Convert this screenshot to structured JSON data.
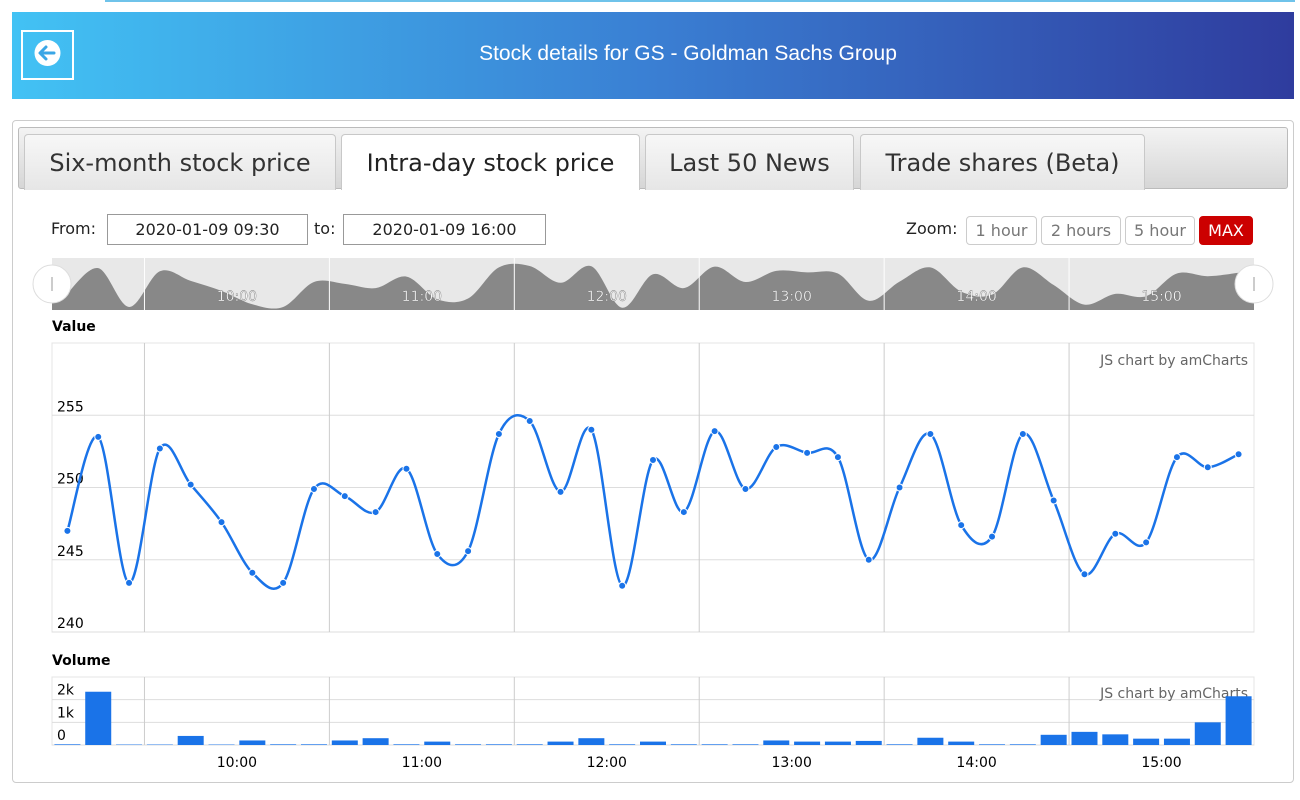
{
  "header": {
    "title": "Stock details for GS - Goldman Sachs Group"
  },
  "tabs": {
    "items": [
      "Six-month stock price",
      "Intra-day stock price",
      "Last 50 News",
      "Trade shares (Beta)"
    ],
    "active": 1
  },
  "controls": {
    "from_label": "From:",
    "from_value": "2020-01-09 09:30",
    "to_label": "to:",
    "to_value": "2020-01-09 16:00",
    "zoom_label": "Zoom:",
    "zoom_buttons": [
      "1 hour",
      "2 hours",
      "5 hour",
      "MAX"
    ],
    "zoom_active": 3
  },
  "chart_data": [
    {
      "type": "line",
      "title": "Value",
      "credit": "JS chart by amCharts",
      "color": "#1a73e8",
      "grid": true,
      "x": [
        "09:35",
        "09:45",
        "09:55",
        "10:05",
        "10:15",
        "10:25",
        "10:35",
        "10:45",
        "10:55",
        "11:05",
        "11:15",
        "11:25",
        "11:35",
        "11:45",
        "11:55",
        "12:05",
        "12:15",
        "12:25",
        "12:35",
        "12:45",
        "12:55",
        "13:05",
        "13:15",
        "13:25",
        "13:35",
        "13:45",
        "13:55",
        "14:05",
        "14:15",
        "14:25",
        "14:35",
        "14:45",
        "14:55",
        "15:05",
        "15:15",
        "15:25",
        "15:35",
        "15:45",
        "15:55"
      ],
      "values": [
        247.0,
        253.5,
        243.4,
        252.7,
        250.2,
        247.6,
        244.1,
        243.4,
        249.9,
        249.4,
        248.3,
        251.3,
        245.4,
        245.6,
        253.7,
        254.6,
        249.7,
        254.0,
        243.2,
        251.9,
        248.3,
        253.9,
        249.9,
        252.8,
        252.4,
        252.1,
        245.0,
        250.0,
        253.7,
        247.4,
        246.6,
        253.7,
        249.1,
        244.0,
        246.8,
        246.2,
        252.1,
        251.4,
        252.3
      ],
      "xlim": [
        "09:30",
        "16:00"
      ],
      "xticks": [
        "10:00",
        "11:00",
        "12:00",
        "13:00",
        "14:00",
        "15:00"
      ],
      "ylim": [
        240,
        260
      ],
      "yticks": [
        240,
        245,
        250,
        255
      ]
    },
    {
      "type": "bar",
      "title": "Volume",
      "credit": "JS chart by amCharts",
      "color": "#1a73e8",
      "grid": true,
      "x": [
        "09:35",
        "09:45",
        "09:55",
        "10:05",
        "10:15",
        "10:25",
        "10:35",
        "10:45",
        "10:55",
        "11:05",
        "11:15",
        "11:25",
        "11:35",
        "11:45",
        "11:55",
        "12:05",
        "12:15",
        "12:25",
        "12:35",
        "12:45",
        "12:55",
        "13:05",
        "13:15",
        "13:25",
        "13:35",
        "13:45",
        "13:55",
        "14:05",
        "14:15",
        "14:25",
        "14:35",
        "14:45",
        "14:55",
        "15:05",
        "15:15",
        "15:25",
        "15:35",
        "15:45",
        "15:55"
      ],
      "values": [
        30,
        2350,
        20,
        20,
        400,
        20,
        200,
        30,
        30,
        200,
        300,
        30,
        150,
        30,
        30,
        30,
        150,
        300,
        30,
        150,
        30,
        30,
        30,
        200,
        150,
        150,
        180,
        30,
        320,
        150,
        30,
        30,
        450,
        580,
        470,
        280,
        280,
        1000,
        2150
      ],
      "xlim": [
        "09:30",
        "16:00"
      ],
      "xticks": [
        "10:00",
        "11:00",
        "12:00",
        "13:00",
        "14:00",
        "15:00"
      ],
      "ylim": [
        0,
        3000
      ],
      "yticks": [
        0,
        {
          "value": 1000,
          "label": "1k"
        },
        {
          "value": 2000,
          "label": "2k"
        }
      ]
    }
  ]
}
